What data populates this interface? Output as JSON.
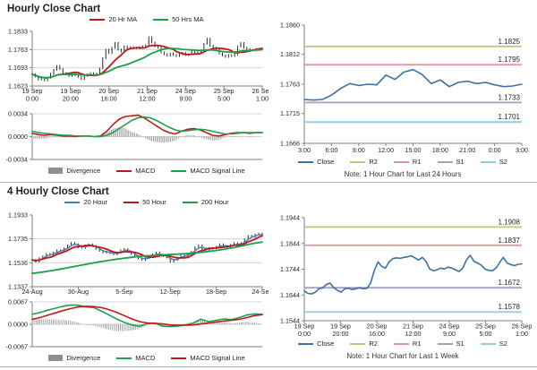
{
  "colors": {
    "price": "#141414",
    "ma_red": "#c01818",
    "ma_green": "#1ca04c",
    "ma_blue": "#4a7ebb",
    "close_blue": "#3a72a8",
    "r2_olive": "#c0c584",
    "r1_salmon": "#d99694",
    "s1_purple": "#a5a0bc",
    "s2_teal": "#92cddc",
    "divergence_gray": "#8f8f8f",
    "grid": "#d4d4d4",
    "axis": "#808080"
  },
  "chart_data": [
    {
      "id": "hourly-main",
      "type": "line",
      "title": "Hourly Close Chart",
      "legend": [
        {
          "label": "20 Hr MA",
          "color": "#c01818",
          "marker": "line"
        },
        {
          "label": "50 Hrs MA",
          "color": "#1ca04c",
          "marker": "line"
        }
      ],
      "y_tick_labels": [
        "1.1833",
        "1.1763",
        "1.1693",
        "1.1623"
      ],
      "ylim": [
        1.1623,
        1.1833
      ],
      "grid_values": [
        1.1763,
        1.1693
      ],
      "x_labels": [
        [
          "19 Sep",
          "0:00"
        ],
        [
          "19 Sep",
          "20:00"
        ],
        [
          "20 Sep",
          "16:00"
        ],
        [
          "21 Sep",
          "12:00"
        ],
        [
          "24 Sep",
          "9:00"
        ],
        [
          "25 Sep",
          "5:00"
        ],
        [
          "26 Sep",
          "1:00"
        ]
      ],
      "series": [
        {
          "name": "Price",
          "style": "price-bars",
          "color": "#141414",
          "bar_pad": 0.00035,
          "values": [
            1.1668,
            1.166,
            1.1648,
            1.1652,
            1.1645,
            1.1655,
            1.167,
            1.1685,
            1.17,
            1.1688,
            1.1672,
            1.1668,
            1.1662,
            1.167,
            1.1665,
            1.1658,
            1.165,
            1.1662,
            1.1668,
            1.1672,
            1.1665,
            1.167,
            1.169,
            1.173,
            1.1762,
            1.175,
            1.177,
            1.1788,
            1.1763,
            1.1755,
            1.1775,
            1.1768,
            1.1772,
            1.177,
            1.1768,
            1.1772,
            1.1775,
            1.178,
            1.181,
            1.179,
            1.1775,
            1.177,
            1.1752,
            1.1745,
            1.174,
            1.1748,
            1.1742,
            1.1738,
            1.1745,
            1.175,
            1.1742,
            1.1745,
            1.1755,
            1.1748,
            1.1752,
            1.176,
            1.1785,
            1.1805,
            1.1778,
            1.177,
            1.1765,
            1.1748,
            1.174,
            1.1735,
            1.1742,
            1.1738,
            1.1745,
            1.1775,
            1.1788,
            1.177,
            1.1765,
            1.1762,
            1.176,
            1.1765,
            1.1763,
            1.1764
          ]
        },
        {
          "name": "20 Hr MA",
          "style": "line",
          "color": "#c01818",
          "width": 1.8,
          "ma_of": 0,
          "window": 9
        },
        {
          "name": "50 Hrs MA",
          "style": "line",
          "color": "#1ca04c",
          "width": 1.8,
          "ma_of": 0,
          "window": 22
        }
      ]
    },
    {
      "id": "hourly-macd",
      "type": "macd",
      "y_tick_labels": [
        "0.0034",
        "0.0000",
        "-0.0034"
      ],
      "ylim": [
        -0.0034,
        0.0034
      ],
      "legend": [
        {
          "label": "Divergence",
          "color": "#8f8f8f",
          "marker": "swatch"
        },
        {
          "label": "MACD",
          "color": "#c01818",
          "marker": "line"
        },
        {
          "label": "MACD Signal Line",
          "color": "#1ca04c",
          "marker": "line"
        }
      ],
      "macd_color": "#c01818",
      "signal_color": "#1ca04c",
      "macd": [
        0.0005,
        0.0003,
        0.0002,
        0.0003,
        0.0002,
        0.0001,
        0.0001,
        0.0,
        0.0001,
        0.0001,
        0.0,
        0.0001,
        0.0008,
        0.0018,
        0.0026,
        0.003,
        0.0031,
        0.0032,
        0.0028,
        0.0022,
        0.0016,
        0.001,
        0.0006,
        0.0004,
        0.0008,
        0.0011,
        0.0012,
        0.001,
        0.0006,
        0.0002,
        0.0001,
        0.0003,
        0.0005,
        0.0006,
        0.0006,
        0.0005,
        0.0006,
        0.0006
      ],
      "signal": [
        0.0008,
        0.0006,
        0.0005,
        0.0004,
        0.0003,
        0.0002,
        0.0002,
        0.0001,
        0.0001,
        0.0001,
        0.0,
        0.0,
        0.0002,
        0.0006,
        0.0012,
        0.0018,
        0.0024,
        0.0028,
        0.0029,
        0.0028,
        0.0024,
        0.0019,
        0.0014,
        0.001,
        0.0008,
        0.0009,
        0.001,
        0.0011,
        0.001,
        0.0008,
        0.0006,
        0.0004,
        0.0004,
        0.0005,
        0.0006,
        0.0006,
        0.0006,
        0.0006
      ]
    },
    {
      "id": "pivot-24h",
      "type": "pivot",
      "note": "Note: 1 Hour Chart for Last 24 Hours",
      "y_tick_labels": [
        "1.1860",
        "1.1812",
        "1.1763",
        "1.1715",
        "1.1666"
      ],
      "ylim": [
        1.1666,
        1.186
      ],
      "x_labels": [
        "3:00",
        "6:00",
        "9:00",
        "12:00",
        "15:00",
        "18:00",
        "21:00",
        "0:00",
        "3:00"
      ],
      "close_color": "#3a72a8",
      "close": [
        1.1738,
        1.1737,
        1.1738,
        1.1745,
        1.1756,
        1.1764,
        1.1761,
        1.1763,
        1.1762,
        1.1778,
        1.1771,
        1.1783,
        1.1787,
        1.1779,
        1.1764,
        1.177,
        1.1759,
        1.1766,
        1.1768,
        1.1764,
        1.1766,
        1.1762,
        1.1759,
        1.176,
        1.1763
      ],
      "pivots": [
        {
          "name": "R2",
          "label": "1.1825",
          "value": 1.1825,
          "color": "#c0c584"
        },
        {
          "name": "R1",
          "label": "1.1795",
          "value": 1.1795,
          "color": "#d99694"
        },
        {
          "name": "S1",
          "label": "1.1733",
          "value": 1.1733,
          "color": "#a5a0bc"
        },
        {
          "name": "S2",
          "label": "1.1701",
          "value": 1.1701,
          "color": "#92cddc"
        }
      ],
      "legend": [
        {
          "label": "Close",
          "color": "#3a72a8",
          "marker": "line"
        },
        {
          "label": "R2",
          "color": "#c0c584",
          "marker": "line"
        },
        {
          "label": "R1",
          "color": "#d99694",
          "marker": "line"
        },
        {
          "label": "S1",
          "color": "#a5a0bc",
          "marker": "line"
        },
        {
          "label": "S2",
          "color": "#92cddc",
          "marker": "line"
        }
      ]
    },
    {
      "id": "4hourly-main",
      "type": "line",
      "title": "4 Hourly Close Chart",
      "legend": [
        {
          "label": "20 Hour",
          "color": "#4a7ebb",
          "marker": "line"
        },
        {
          "label": "50 Hour",
          "color": "#c01818",
          "marker": "line"
        },
        {
          "label": "200 Hour",
          "color": "#1ca04c",
          "marker": "line"
        }
      ],
      "y_tick_labels": [
        "1.1933",
        "1.1735",
        "1.1536",
        "1.1337"
      ],
      "ylim": [
        1.1337,
        1.1933
      ],
      "grid_values": [
        1.1735,
        1.1536
      ],
      "x_labels": [
        [
          "24-Aug"
        ],
        [
          "30-Aug"
        ],
        [
          "5-Sep"
        ],
        [
          "12-Sep"
        ],
        [
          "18-Sep"
        ],
        [
          "24-Sep"
        ]
      ],
      "series": [
        {
          "name": "Price",
          "style": "price-bars",
          "color": "#141414",
          "bar_pad": 0.0007,
          "values": [
            1.156,
            1.1545,
            1.1575,
            1.159,
            1.161,
            1.16,
            1.162,
            1.164,
            1.1635,
            1.1655,
            1.168,
            1.17,
            1.169,
            1.1665,
            1.166,
            1.168,
            1.169,
            1.1675,
            1.165,
            1.1635,
            1.162,
            1.163,
            1.1615,
            1.1605,
            1.162,
            1.164,
            1.165,
            1.163,
            1.161,
            1.159,
            1.157,
            1.156,
            1.1575,
            1.159,
            1.1605,
            1.162,
            1.16,
            1.159,
            1.158,
            1.1545,
            1.156,
            1.158,
            1.16,
            1.159,
            1.161,
            1.163,
            1.1665,
            1.168,
            1.165,
            1.164,
            1.166,
            1.1655,
            1.167,
            1.169,
            1.1675,
            1.1665,
            1.1685,
            1.17,
            1.168,
            1.17,
            1.173,
            1.176,
            1.175,
            1.177,
            1.178,
            1.1763
          ]
        },
        {
          "name": "20 Hour",
          "style": "line",
          "color": "#4a7ebb",
          "width": 1.5,
          "ma_of": 0,
          "window": 3
        },
        {
          "name": "50 Hour",
          "style": "line",
          "color": "#c01818",
          "width": 1.8,
          "ma_of": 0,
          "window": 6
        },
        {
          "name": "200 Hour",
          "style": "line",
          "color": "#1ca04c",
          "width": 1.8,
          "values": [
            1.1447,
            1.1458,
            1.147,
            1.1484,
            1.1499,
            1.1514,
            1.1529,
            1.1543,
            1.1556,
            1.1568,
            1.1578,
            1.1587,
            1.1594,
            1.1599,
            1.1603,
            1.1607,
            1.1612,
            1.1618,
            1.1626,
            1.1636,
            1.1648,
            1.1662,
            1.1678,
            1.1695,
            1.1708
          ]
        }
      ]
    },
    {
      "id": "4hourly-macd",
      "type": "macd",
      "y_tick_labels": [
        "0.0067",
        "0.0000",
        "-0.0067"
      ],
      "ylim": [
        -0.0067,
        0.0067
      ],
      "legend": [
        {
          "label": "Divergence",
          "color": "#8f8f8f",
          "marker": "swatch"
        },
        {
          "label": "MACD",
          "color": "#1ca04c",
          "marker": "line"
        },
        {
          "label": "MACD Signal Line",
          "color": "#c01818",
          "marker": "line"
        }
      ],
      "macd_color": "#1ca04c",
      "signal_color": "#c01818",
      "macd": [
        0.003,
        0.0035,
        0.0042,
        0.0048,
        0.0054,
        0.0058,
        0.0057,
        0.0052,
        0.005,
        0.004,
        0.0028,
        0.0016,
        0.0006,
        -0.0002,
        -0.0006,
        0.0002,
        0.0004,
        -0.0006,
        -0.0007,
        -0.0005,
        -0.0002,
        0.0004,
        0.0015,
        0.0008,
        0.0012,
        0.0016,
        0.0014,
        0.002,
        0.0028,
        0.0031,
        0.003
      ],
      "signal": [
        0.0015,
        0.002,
        0.0027,
        0.0034,
        0.0041,
        0.0047,
        0.0052,
        0.0054,
        0.0053,
        0.005,
        0.0044,
        0.0036,
        0.0026,
        0.0016,
        0.0008,
        0.0004,
        0.0003,
        0.0001,
        -0.0002,
        -0.0003,
        -0.0003,
        -0.0002,
        0.0001,
        0.0004,
        0.0007,
        0.001,
        0.0012,
        0.0015,
        0.002,
        0.0026,
        0.0029
      ]
    },
    {
      "id": "pivot-week",
      "type": "pivot",
      "note": "Note: 1 Hour Chart for Last 1 Week",
      "y_tick_labels": [
        "1.1944",
        "1.1844",
        "1.1744",
        "1.1644",
        "1.1544"
      ],
      "ylim": [
        1.1544,
        1.1944
      ],
      "x_labels": [
        [
          "19 Sep",
          "0:00"
        ],
        [
          "19 Sep",
          "20:00"
        ],
        [
          "20 Sep",
          "16:00"
        ],
        [
          "21 Sep",
          "12:00"
        ],
        [
          "24 Sep",
          "9:00"
        ],
        [
          "25 Sep",
          "5:00"
        ],
        [
          "26 Sep",
          "1:00"
        ]
      ],
      "close_color": "#3a72a8",
      "close": [
        1.166,
        1.165,
        1.1648,
        1.1655,
        1.1668,
        1.1672,
        1.1685,
        1.169,
        1.1672,
        1.1662,
        1.1655,
        1.1668,
        1.167,
        1.1665,
        1.1668,
        1.1672,
        1.1668,
        1.167,
        1.169,
        1.174,
        1.1772,
        1.1755,
        1.1748,
        1.1772,
        1.1785,
        1.1788,
        1.1786,
        1.179,
        1.1792,
        1.1796,
        1.1788,
        1.178,
        1.179,
        1.1775,
        1.1745,
        1.1738,
        1.1742,
        1.1748,
        1.1745,
        1.1752,
        1.1748,
        1.1742,
        1.1735,
        1.1748,
        1.178,
        1.1798,
        1.1775,
        1.1768,
        1.176,
        1.1745,
        1.174,
        1.1738,
        1.1748,
        1.177,
        1.179,
        1.1768,
        1.1762,
        1.1758,
        1.1763,
        1.1765
      ],
      "pivots": [
        {
          "name": "R2",
          "label": "1.1908",
          "value": 1.1908,
          "color": "#c0c584"
        },
        {
          "name": "R1",
          "label": "1.1837",
          "value": 1.1837,
          "color": "#d99694"
        },
        {
          "name": "S1",
          "label": "1.1672",
          "value": 1.1672,
          "color": "#a5a0bc"
        },
        {
          "name": "S2",
          "label": "1.1578",
          "value": 1.1578,
          "color": "#92cddc"
        }
      ],
      "legend": [
        {
          "label": "Close",
          "color": "#3a72a8",
          "marker": "line"
        },
        {
          "label": "R2",
          "color": "#c0c584",
          "marker": "line"
        },
        {
          "label": "R1",
          "color": "#d99694",
          "marker": "line"
        },
        {
          "label": "S1",
          "color": "#a5a0bc",
          "marker": "line"
        },
        {
          "label": "S2",
          "color": "#92cddc",
          "marker": "line"
        }
      ]
    }
  ]
}
